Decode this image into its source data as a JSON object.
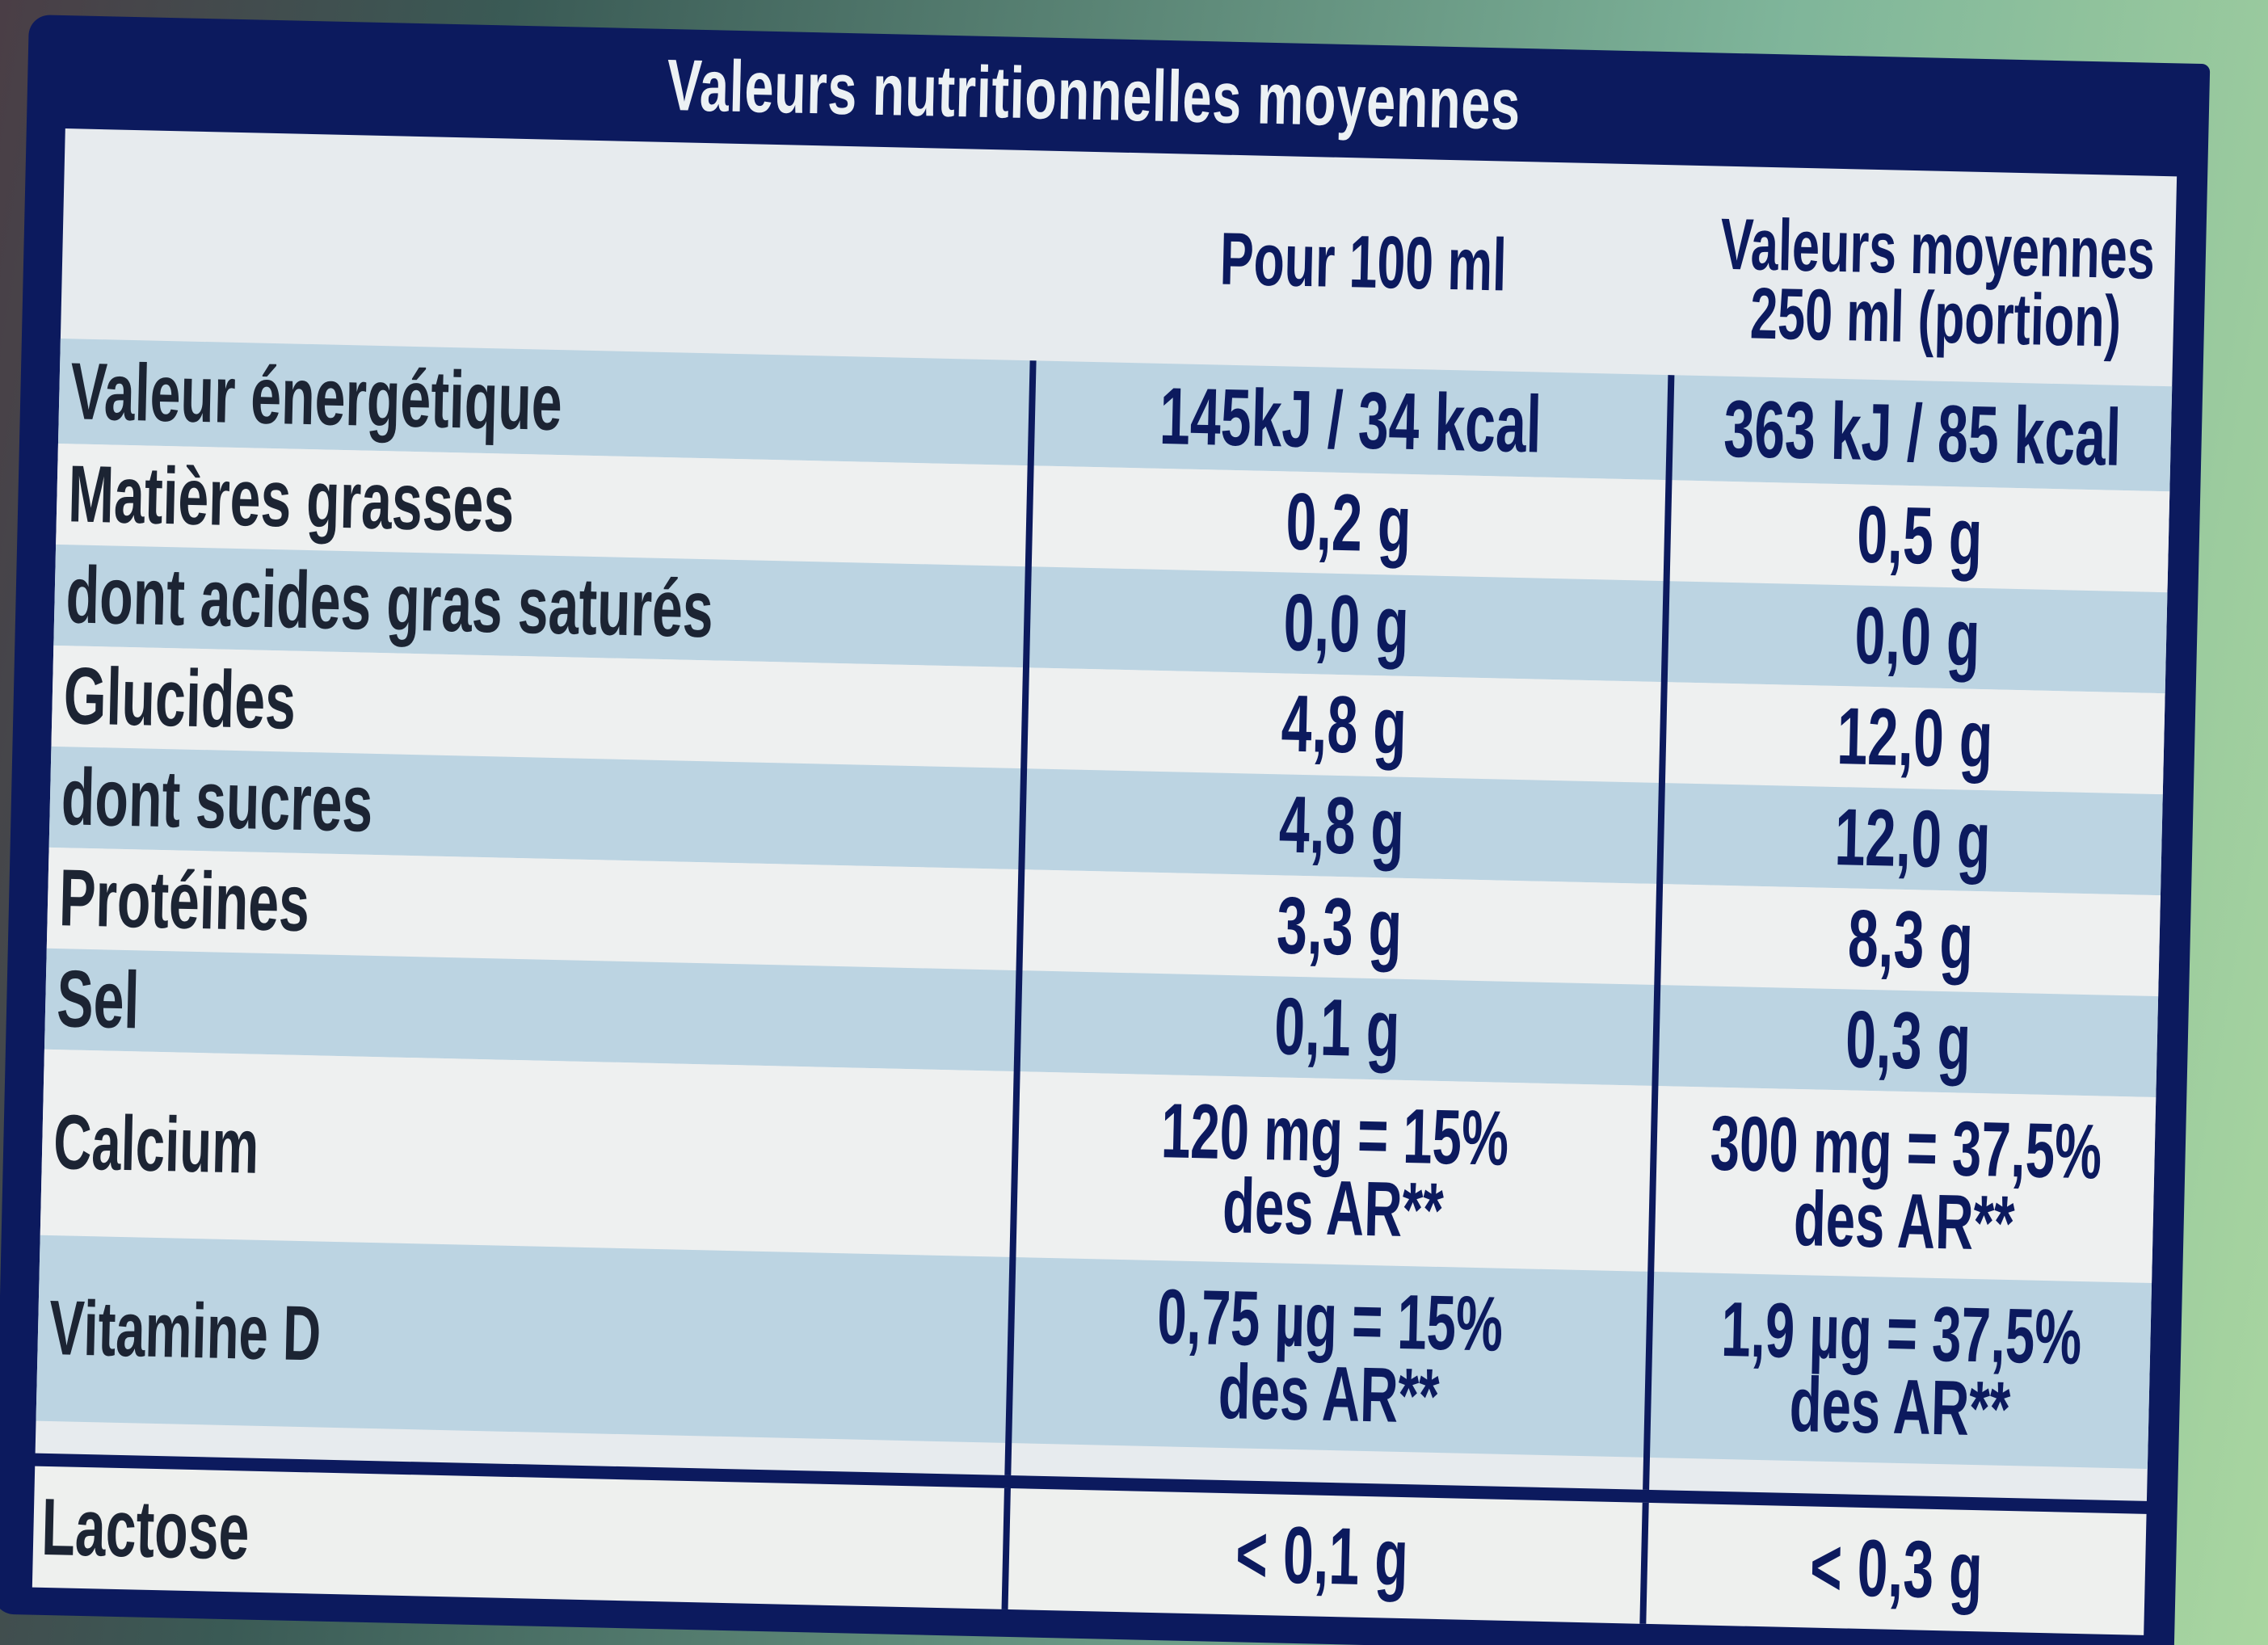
{
  "panel": {
    "title": "Valeurs nutritionnelles moyennes"
  },
  "header": {
    "col_100ml": "Pour 100 ml",
    "col_portion_line1": "Valeurs moyennes",
    "col_portion_line2": "250 ml (portion)"
  },
  "rows": [
    {
      "name": "Valeur énergétique",
      "per100": "145kJ / 34 kcal",
      "per100_line2": "",
      "portion": "363 kJ / 85 kcal",
      "portion_line2": ""
    },
    {
      "name": "Matières grasses",
      "per100": "0,2 g",
      "per100_line2": "",
      "portion": "0,5 g",
      "portion_line2": ""
    },
    {
      "name": "dont acides gras saturés",
      "per100": "0,0 g",
      "per100_line2": "",
      "portion": "0,0 g",
      "portion_line2": ""
    },
    {
      "name": "Glucides",
      "per100": "4,8 g",
      "per100_line2": "",
      "portion": "12,0 g",
      "portion_line2": ""
    },
    {
      "name": "dont sucres",
      "per100": "4,8 g",
      "per100_line2": "",
      "portion": "12,0 g",
      "portion_line2": ""
    },
    {
      "name": "Protéines",
      "per100": "3,3 g",
      "per100_line2": "",
      "portion": "8,3 g",
      "portion_line2": ""
    },
    {
      "name": "Sel",
      "per100": "0,1 g",
      "per100_line2": "",
      "portion": "0,3 g",
      "portion_line2": ""
    },
    {
      "name": "Calcium",
      "per100": "120 mg = 15%",
      "per100_line2": "des AR**",
      "portion": "300 mg = 37,5%",
      "portion_line2": "des AR**"
    },
    {
      "name": "Vitamine D",
      "per100": "0,75 µg = 15%",
      "per100_line2": "des AR**",
      "portion": "1,9 µg = 37,5%",
      "portion_line2": "des AR**"
    }
  ],
  "footer_row": {
    "name": "Lactose",
    "per100": "< 0,1 g",
    "portion": "< 0,3 g"
  },
  "colors": {
    "navy": "#0c1a5e",
    "row_blue": "#bcd4e2",
    "row_white": "#eef0f0"
  }
}
